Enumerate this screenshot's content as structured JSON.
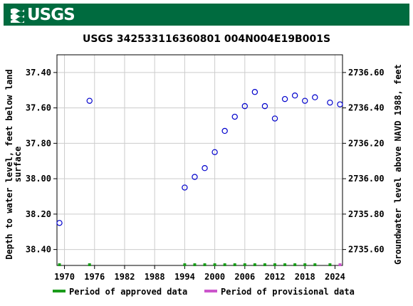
{
  "header": {
    "logo_text": "USGS",
    "bar_color": "#006b3f"
  },
  "chart_data": {
    "type": "scatter",
    "title": "USGS 342533116360801 004N004E19B001S",
    "ylabel_left": [
      "Depth to water level, feet below land",
      "surface"
    ],
    "ylabel_right": "Groundwater level above NAVD 1988, feet",
    "x_ticks": [
      "1970",
      "1976",
      "1982",
      "1988",
      "1994",
      "2000",
      "2006",
      "2012",
      "2018",
      "2024"
    ],
    "xlim": [
      1968.5,
      2025.5
    ],
    "y_left_ticks": [
      "37.40",
      "37.60",
      "37.80",
      "38.00",
      "38.20",
      "38.40"
    ],
    "y_left_lim": [
      37.3,
      38.49
    ],
    "y_left_inverted": true,
    "y_right_ticks": [
      "2736.60",
      "2736.40",
      "2736.20",
      "2736.00",
      "2735.80",
      "2735.60"
    ],
    "grid": true,
    "marker_color": "#0000cc",
    "series": [
      {
        "x": [
          1969.0,
          1975.0,
          1994.0,
          1996.0,
          1998.0,
          2000.0,
          2002.0,
          2004.0,
          2006.0,
          2008.0,
          2010.0,
          2012.0,
          2014.0,
          2016.0,
          2018.0,
          2020.0,
          2023.0,
          2025.0
        ],
        "y": [
          38.25,
          37.56,
          38.05,
          37.99,
          37.94,
          37.85,
          37.73,
          37.65,
          37.59,
          37.51,
          37.59,
          37.66,
          37.55,
          37.53,
          37.56,
          37.54,
          37.57,
          37.58
        ]
      }
    ],
    "approved_x": [
      1969.0,
      1975.0,
      1994.0,
      1996.0,
      1998.0,
      2000.0,
      2002.0,
      2004.0,
      2006.0,
      2008.0,
      2010.0,
      2012.0,
      2014.0,
      2016.0,
      2018.0,
      2020.0,
      2023.0
    ],
    "provisional_x": [
      2025.0
    ],
    "legend": [
      {
        "label": "Period of approved data",
        "color": "#1a9b1a"
      },
      {
        "label": "Period of provisional data",
        "color": "#cc55cc"
      }
    ]
  }
}
